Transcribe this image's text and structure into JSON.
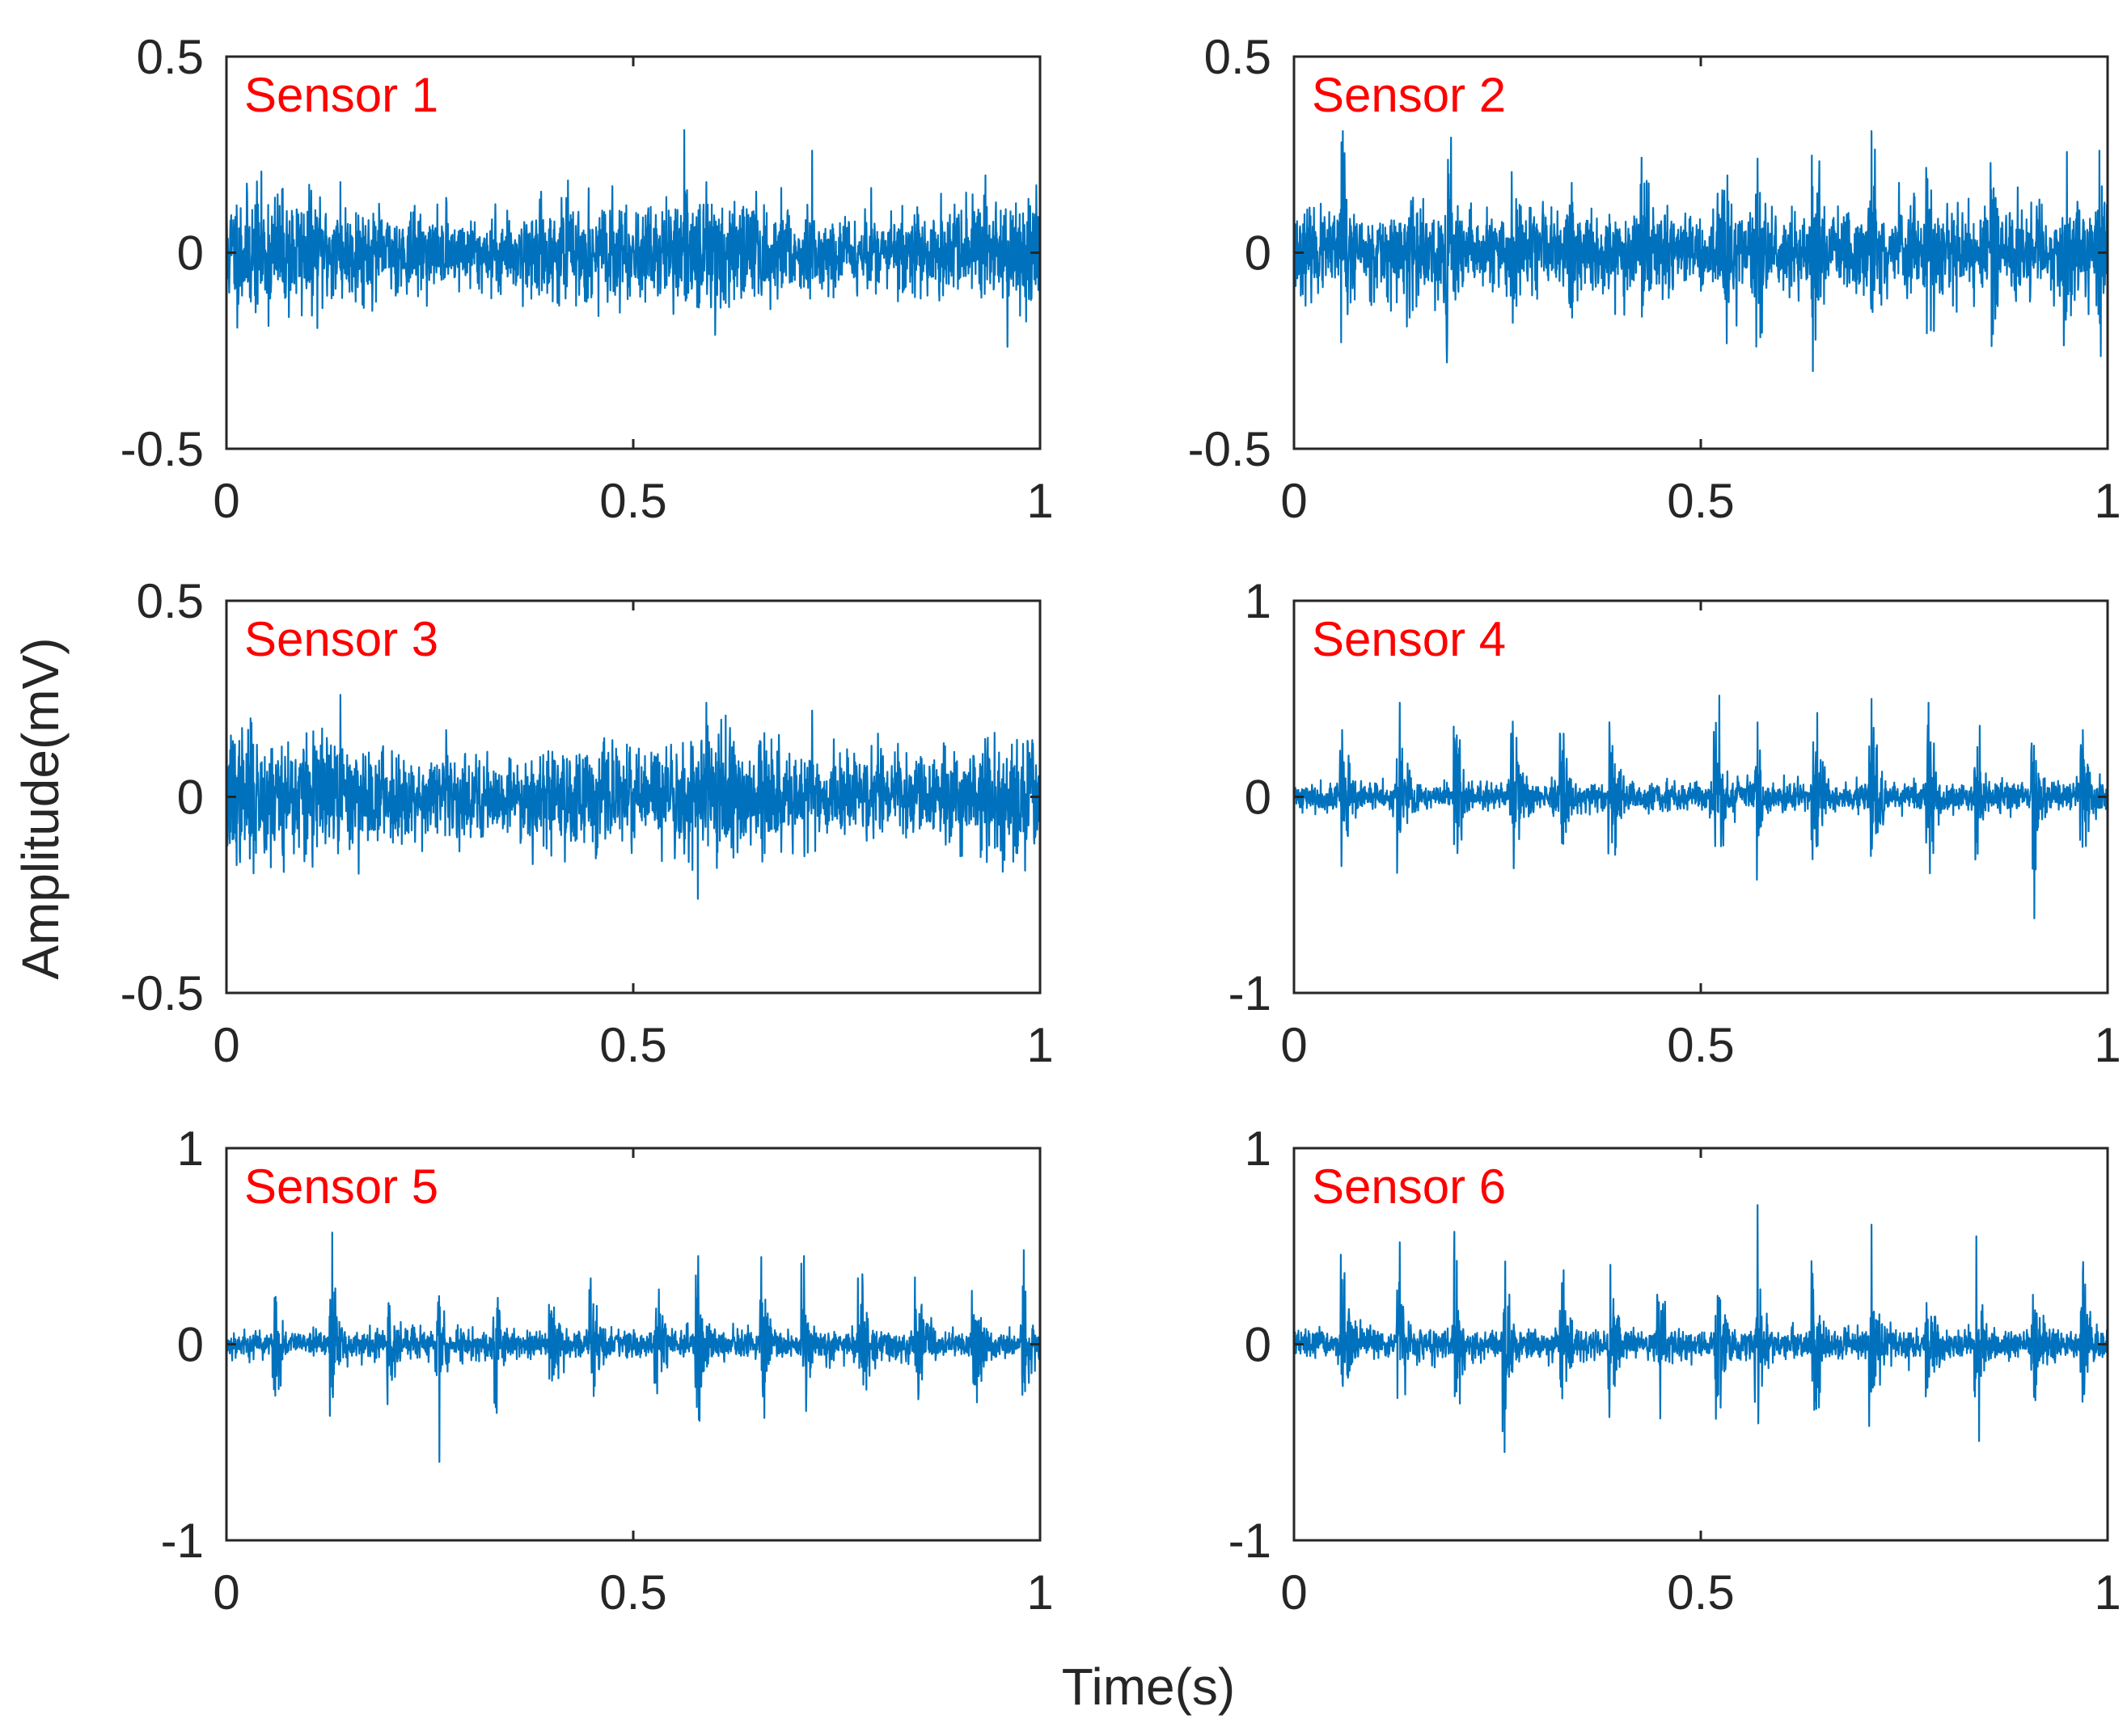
{
  "figure": {
    "ylabel": "Amplitude(mV)",
    "xlabel": "Time(s)"
  },
  "style": {
    "trace_color": "#0072bd",
    "label_color": "#ff0000",
    "axis_color": "#262626"
  },
  "chart_data": [
    {
      "type": "line",
      "label": "Sensor 1",
      "xlim": [
        0,
        1
      ],
      "ylim": [
        -0.5,
        0.5
      ],
      "xticks": [
        "0",
        "0.5",
        "1"
      ],
      "yticks": [
        "-0.5",
        "0",
        "0.5"
      ],
      "signal": {
        "noise": 0.06,
        "envelope": "mod",
        "peak_positive": 0.26,
        "peak_negative": -0.24,
        "bursts": [],
        "seed": 11
      },
      "series": [
        {
          "x": [
            0,
            0.14,
            0.27,
            0.5,
            0.59,
            0.72,
            1
          ],
          "y": [
            0.05,
            0.18,
            0.14,
            0.02,
            0.18,
            0.26,
            0.14
          ]
        }
      ]
    },
    {
      "type": "line",
      "label": "Sensor 2",
      "xlim": [
        0,
        1
      ],
      "ylim": [
        -0.5,
        0.5
      ],
      "xticks": [
        "0",
        "0.5",
        "1"
      ],
      "yticks": [
        "-0.5",
        "0",
        "0.5"
      ],
      "signal": {
        "noise": 0.05,
        "envelope": "flat",
        "peak_positive": 0.31,
        "peak_negative": -0.28,
        "bursts": [
          0.06,
          0.14,
          0.19,
          0.27,
          0.34,
          0.43,
          0.53,
          0.57,
          0.64,
          0.71,
          0.78,
          0.86,
          0.95,
          0.99
        ],
        "burst_amp": 0.22,
        "seed": 23
      },
      "series": [
        {
          "x": [
            0.06,
            0.19,
            0.57,
            0.71,
            0.99
          ],
          "y": [
            0.31,
            0.2,
            0.24,
            0.31,
            0.26
          ]
        }
      ]
    },
    {
      "type": "line",
      "label": "Sensor 3",
      "xlim": [
        0,
        1
      ],
      "ylim": [
        -0.5,
        0.5
      ],
      "xticks": [
        "0",
        "0.5",
        "1"
      ],
      "yticks": [
        "-0.5",
        "0",
        "0.5"
      ],
      "signal": {
        "noise": 0.065,
        "envelope": "mod",
        "peak_positive": 0.27,
        "peak_negative": -0.26,
        "bursts": [],
        "seed": 37
      },
      "series": [
        {
          "x": [
            0,
            0.14,
            0.27,
            0.5,
            0.59,
            0.72,
            1
          ],
          "y": [
            0.06,
            0.26,
            0.17,
            0.02,
            0.24,
            0.22,
            0.18
          ]
        }
      ]
    },
    {
      "type": "line",
      "label": "Sensor 4",
      "xlim": [
        0,
        1
      ],
      "ylim": [
        -1,
        1
      ],
      "xticks": [
        "0",
        "0.5",
        "1"
      ],
      "yticks": [
        "-1",
        "0",
        "1"
      ],
      "signal": {
        "noise": 0.035,
        "envelope": "flat",
        "peak_positive": 0.5,
        "peak_negative": -0.62,
        "bursts": [
          0.06,
          0.13,
          0.2,
          0.27,
          0.33,
          0.39,
          0.52,
          0.57,
          0.64,
          0.71,
          0.78,
          0.84,
          0.91,
          0.97
        ],
        "burst_amp": 0.36,
        "seed": 41
      },
      "series": [
        {
          "x": [
            0.13,
            0.57,
            0.71,
            0.78
          ],
          "y": [
            0.48,
            0.38,
            0.5,
            0.48
          ]
        }
      ]
    },
    {
      "type": "line",
      "label": "Sensor 5",
      "xlim": [
        0,
        1
      ],
      "ylim": [
        -1,
        1
      ],
      "xticks": [
        "0",
        "0.5",
        "1"
      ],
      "yticks": [
        "-1",
        "0",
        "1"
      ],
      "signal": {
        "noise": 0.035,
        "envelope": "flat",
        "peak_positive": 0.57,
        "peak_negative": -0.6,
        "bursts": [
          0.06,
          0.13,
          0.2,
          0.26,
          0.33,
          0.4,
          0.45,
          0.53,
          0.58,
          0.66,
          0.71,
          0.78,
          0.85,
          0.92,
          0.98
        ],
        "burst_amp": 0.32,
        "seed": 53
      },
      "series": [
        {
          "x": [
            0.13,
            0.58,
            0.71,
            0.98
          ],
          "y": [
            0.57,
            0.45,
            0.45,
            0.48
          ]
        }
      ]
    },
    {
      "type": "line",
      "label": "Sensor 6",
      "xlim": [
        0,
        1
      ],
      "ylim": [
        -1,
        1
      ],
      "xticks": [
        "0",
        "0.5",
        "1"
      ],
      "yticks": [
        "-1",
        "0",
        "1"
      ],
      "signal": {
        "noise": 0.035,
        "envelope": "flat",
        "peak_positive": 0.71,
        "peak_negative": -0.55,
        "bursts": [
          0.06,
          0.13,
          0.2,
          0.26,
          0.33,
          0.39,
          0.45,
          0.52,
          0.57,
          0.64,
          0.71,
          0.78,
          0.84,
          0.91,
          0.97
        ],
        "burst_amp": 0.36,
        "seed": 67
      },
      "series": [
        {
          "x": [
            0.13,
            0.57,
            0.71,
            0.97
          ],
          "y": [
            0.52,
            0.71,
            0.61,
            0.42
          ]
        }
      ]
    }
  ]
}
